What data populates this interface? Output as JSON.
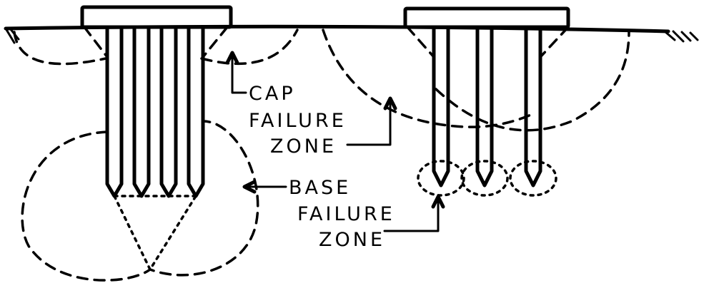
{
  "labels": {
    "cap_1": "CAP",
    "cap_2": "FAILURE",
    "cap_3": "ZONE",
    "base_1": "BASE",
    "base_2": "FAILURE",
    "base_3": "ZONE"
  },
  "colors": {
    "ink": "#000000",
    "paper": "#ffffff"
  }
}
